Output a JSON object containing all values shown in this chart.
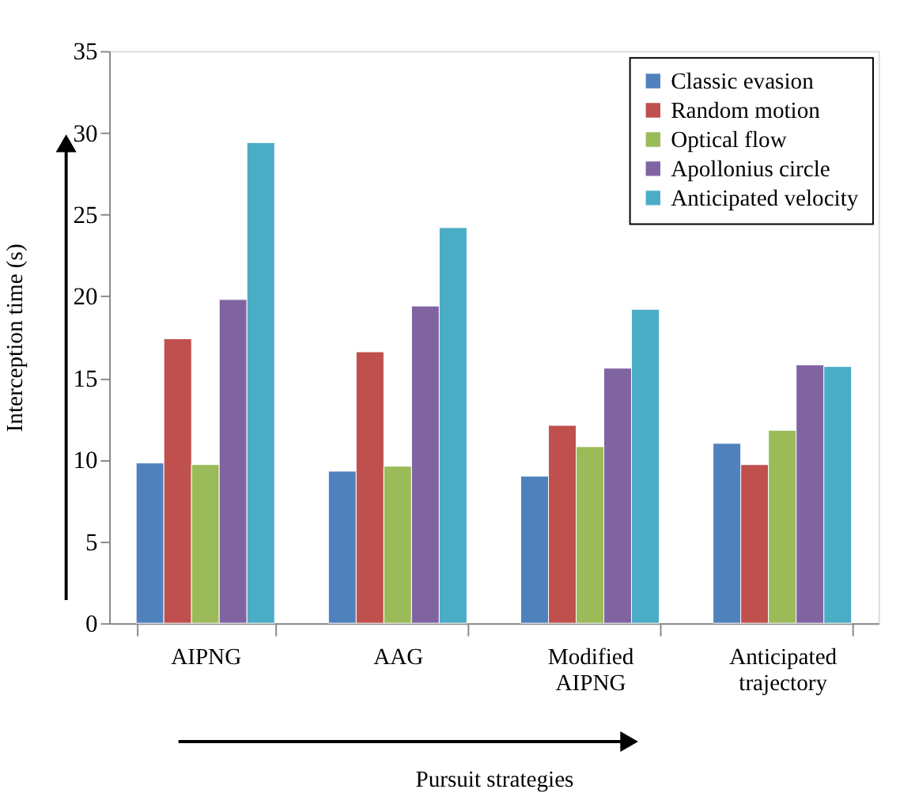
{
  "chart_data": {
    "type": "bar",
    "xlabel": "Pursuit strategies",
    "ylabel": "Interception time (s)",
    "categories": [
      "AIPNG",
      "AAG",
      "Modified AIPNG",
      "Anticipated trajectory"
    ],
    "series": [
      {
        "name": "Classic evasion",
        "color": "#4f81bd",
        "values": [
          9.8,
          9.3,
          9.0,
          11.0
        ]
      },
      {
        "name": "Random motion",
        "color": "#c0504d",
        "values": [
          17.4,
          16.6,
          12.1,
          9.7
        ]
      },
      {
        "name": "Optical flow",
        "color": "#9bbb59",
        "values": [
          9.7,
          9.6,
          10.8,
          11.8
        ]
      },
      {
        "name": "Apollonius circle",
        "color": "#8064a2",
        "values": [
          19.8,
          19.4,
          15.6,
          15.8
        ]
      },
      {
        "name": "Anticipated velocity",
        "color": "#4bacc6",
        "values": [
          29.4,
          24.2,
          19.2,
          15.7
        ]
      }
    ],
    "ylim": [
      0,
      35
    ],
    "yticks": [
      0,
      5,
      10,
      15,
      20,
      25,
      30,
      35
    ],
    "grid": false,
    "legend": "top right"
  }
}
